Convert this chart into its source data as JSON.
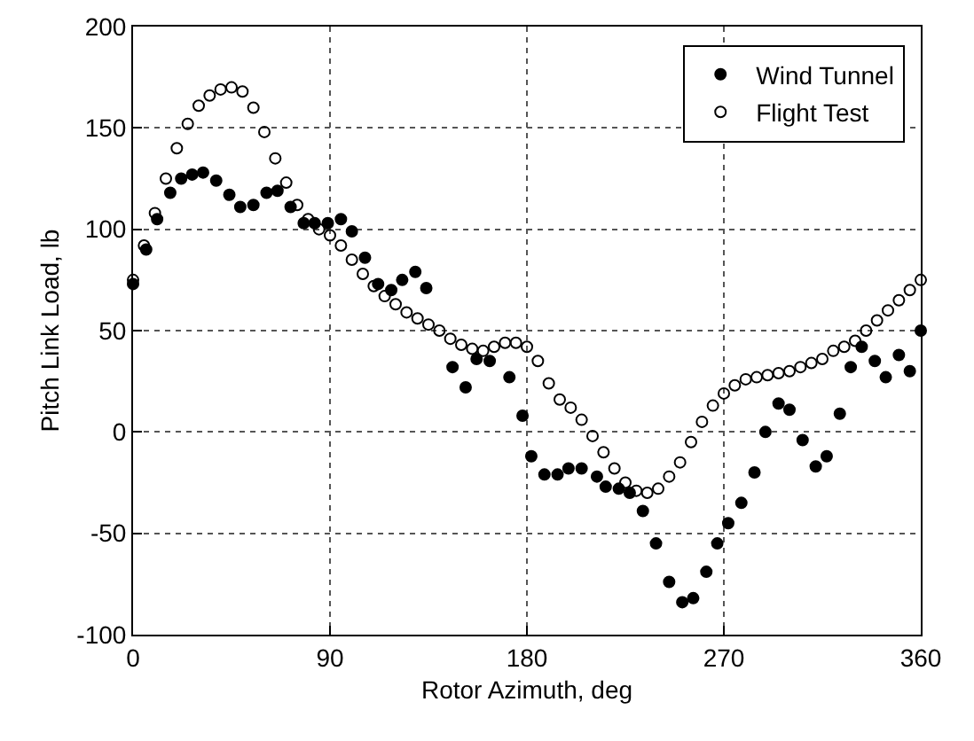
{
  "chart_data": {
    "type": "scatter",
    "xlabel": "Rotor Azimuth, deg",
    "ylabel": "Pitch Link Load, lb",
    "xlim": [
      0,
      360
    ],
    "xticks": [
      0,
      90,
      180,
      270,
      360
    ],
    "ylim": [
      -100,
      200
    ],
    "yticks": [
      -100,
      -50,
      0,
      50,
      100,
      150,
      200
    ],
    "grid": true,
    "legend": "top right",
    "marker": "circle",
    "series": [
      {
        "name": "Wind Tunnel",
        "color": "#000000",
        "x": [
          0,
          6,
          11,
          17,
          22,
          27,
          32,
          38,
          44,
          49,
          55,
          61,
          66,
          72,
          78,
          83,
          89,
          95,
          100,
          106,
          112,
          118,
          123,
          129,
          134,
          146,
          152,
          157,
          163,
          172,
          178,
          182,
          188,
          194,
          199,
          205,
          212,
          216,
          222,
          227,
          233,
          239,
          245,
          251,
          256,
          262,
          267,
          272,
          278,
          284,
          289,
          295,
          300,
          306,
          312,
          317,
          323,
          328,
          333,
          339,
          344,
          350,
          355,
          360
        ],
        "values": [
          73,
          90,
          105,
          118,
          125,
          127,
          128,
          124,
          117,
          111,
          112,
          118,
          119,
          111,
          103,
          103,
          103,
          105,
          99,
          86,
          73,
          70,
          75,
          79,
          71,
          32,
          22,
          36,
          35,
          27,
          8,
          -12,
          -21,
          -21,
          -18,
          -18,
          -22,
          -27,
          -28,
          -30,
          -39,
          -55,
          -74,
          -84,
          -82,
          -69,
          -55,
          -45,
          -35,
          -20,
          0,
          14,
          11,
          -4,
          -17,
          -12,
          9,
          32,
          42,
          35,
          27,
          38,
          30,
          50
        ]
      },
      {
        "name": "Flight Test",
        "color": "#000000",
        "x": [
          0,
          5,
          10,
          15,
          20,
          25,
          30,
          35,
          40,
          45,
          50,
          55,
          60,
          65,
          70,
          75,
          80,
          85,
          90,
          95,
          100,
          105,
          110,
          115,
          120,
          125,
          130,
          135,
          140,
          145,
          150,
          155,
          160,
          165,
          170,
          175,
          180,
          185,
          190,
          195,
          200,
          205,
          210,
          215,
          220,
          225,
          230,
          235,
          240,
          245,
          250,
          255,
          260,
          265,
          270,
          275,
          280,
          285,
          290,
          295,
          300,
          305,
          310,
          315,
          320,
          325,
          330,
          335,
          340,
          345,
          350,
          355,
          360
        ],
        "values": [
          75,
          92,
          108,
          125,
          140,
          152,
          161,
          166,
          169,
          170,
          168,
          160,
          148,
          135,
          123,
          112,
          105,
          100,
          97,
          92,
          85,
          78,
          72,
          67,
          63,
          59,
          56,
          53,
          50,
          46,
          43,
          41,
          40,
          42,
          44,
          44,
          42,
          35,
          24,
          16,
          12,
          6,
          -2,
          -10,
          -18,
          -25,
          -29,
          -30,
          -28,
          -22,
          -15,
          -5,
          5,
          13,
          19,
          23,
          26,
          27,
          28,
          29,
          30,
          32,
          34,
          36,
          40,
          42,
          45,
          50,
          55,
          60,
          65,
          70,
          75
        ]
      }
    ]
  }
}
